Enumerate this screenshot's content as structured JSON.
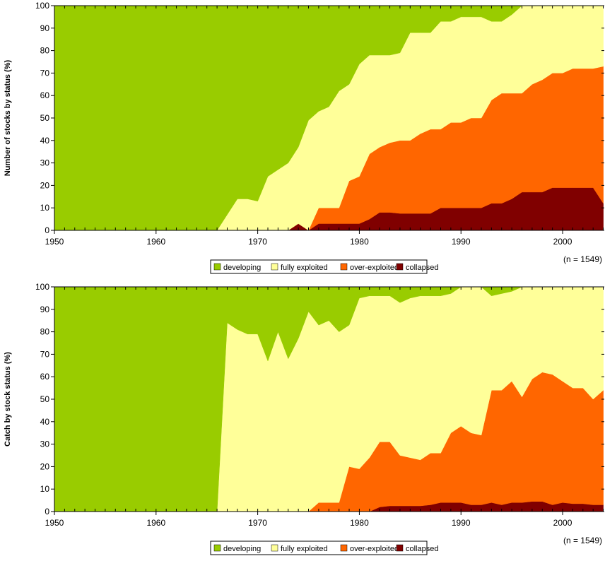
{
  "colors": {
    "developing": "#99cc00",
    "fully exploited": "#ffff99",
    "over-exploited": "#ff6600",
    "collapsed": "#800000"
  },
  "chart_data": [
    {
      "type": "area",
      "stacked": true,
      "title": "",
      "xlabel": "",
      "ylabel": "Number of stocks by status (%)",
      "xlim": [
        1950,
        2004
      ],
      "ylim": [
        0,
        100
      ],
      "xticks": [
        1950,
        1960,
        1970,
        1980,
        1990,
        2000
      ],
      "yticks": [
        0,
        10,
        20,
        30,
        40,
        50,
        60,
        70,
        80,
        90,
        100
      ],
      "annotation": "(n = 1549)",
      "legend": [
        "developing",
        "fully exploited",
        "over-exploited",
        "collapsed"
      ],
      "legend_position": "bottom",
      "x_start": 1950,
      "series": [
        {
          "name": "collapsed",
          "values": [
            0,
            0,
            0,
            0,
            0,
            0,
            0,
            0,
            0,
            0,
            0,
            0,
            0,
            0,
            0,
            0,
            0,
            0,
            0,
            0,
            0,
            0,
            0,
            0,
            3,
            0,
            3,
            3,
            3,
            3,
            3,
            5,
            8,
            8,
            7.5,
            7.5,
            7.5,
            7.5,
            10,
            10,
            10,
            10,
            10,
            12,
            12,
            14,
            17,
            17,
            17,
            19,
            19,
            19,
            19,
            19,
            12
          ]
        },
        {
          "name": "over-exploited",
          "values": [
            0,
            0,
            0,
            0,
            0,
            0,
            0,
            0,
            0,
            0,
            0,
            0,
            0,
            0,
            0,
            0,
            0,
            0,
            0,
            0,
            0,
            0,
            0,
            0,
            0,
            0,
            7,
            7,
            7,
            19,
            21,
            29,
            29,
            31,
            32.5,
            32.5,
            35.5,
            37.5,
            35,
            38,
            38,
            40,
            40,
            46,
            49,
            47,
            44,
            48,
            50,
            51,
            51,
            53,
            53,
            53,
            61
          ]
        },
        {
          "name": "fully exploited",
          "values": [
            0,
            0,
            0,
            0,
            0,
            0,
            0,
            0,
            0,
            0,
            0,
            0,
            0,
            0,
            0,
            0,
            0,
            7,
            14,
            14,
            13,
            24,
            27,
            30,
            34,
            49,
            43,
            45,
            52,
            43,
            50,
            44,
            41,
            39,
            39,
            48,
            45,
            43,
            48,
            45,
            47,
            45,
            45,
            35,
            32,
            35,
            39,
            35,
            33,
            30,
            30,
            28,
            28,
            28,
            27
          ]
        },
        {
          "name": "developing",
          "values": [
            100,
            100,
            100,
            100,
            100,
            100,
            100,
            100,
            100,
            100,
            100,
            100,
            100,
            100,
            100,
            100,
            100,
            93,
            86,
            86,
            87,
            76,
            73,
            70,
            63,
            51,
            47,
            45,
            38,
            35,
            26,
            22,
            22,
            22,
            21,
            12,
            12,
            12,
            7,
            7,
            5,
            5,
            5,
            7,
            7,
            4,
            0,
            0,
            0,
            0,
            0,
            0,
            0,
            0,
            0
          ]
        }
      ]
    },
    {
      "type": "area",
      "stacked": true,
      "title": "",
      "xlabel": "",
      "ylabel": "Catch by stock status (%)",
      "xlim": [
        1950,
        2004
      ],
      "ylim": [
        0,
        100
      ],
      "xticks": [
        1950,
        1960,
        1970,
        1980,
        1990,
        2000
      ],
      "yticks": [
        0,
        10,
        20,
        30,
        40,
        50,
        60,
        70,
        80,
        90,
        100
      ],
      "annotation": "(n = 1549)",
      "legend": [
        "developing",
        "fully exploited",
        "over-exploited",
        "collapsed"
      ],
      "legend_position": "bottom",
      "x_start": 1950,
      "series": [
        {
          "name": "collapsed",
          "values": [
            0,
            0,
            0,
            0,
            0,
            0,
            0,
            0,
            0,
            0,
            0,
            0,
            0,
            0,
            0,
            0,
            0,
            0,
            0,
            0,
            0,
            0,
            0,
            0,
            0,
            0,
            0,
            0,
            0,
            0,
            0,
            0,
            2,
            2.5,
            2.5,
            2.5,
            2.5,
            3,
            4,
            4,
            4,
            3,
            3,
            4,
            3,
            4,
            4,
            4.5,
            4.5,
            3,
            4,
            3.5,
            3.5,
            3,
            3
          ]
        },
        {
          "name": "over-exploited",
          "values": [
            0,
            0,
            0,
            0,
            0,
            0,
            0,
            0,
            0,
            0,
            0,
            0,
            0,
            0,
            0,
            0,
            0,
            0,
            0,
            0,
            0,
            0,
            0,
            0,
            0,
            0,
            4,
            4,
            4,
            20,
            19,
            24,
            29,
            28.5,
            22.5,
            21.5,
            20.5,
            23,
            22,
            31,
            34,
            32,
            31,
            50,
            51,
            54,
            47,
            54.5,
            57.5,
            58,
            54,
            51.5,
            51.5,
            47,
            51
          ]
        },
        {
          "name": "fully exploited",
          "values": [
            0,
            0,
            0,
            0,
            0,
            0,
            0,
            0,
            0,
            0,
            0,
            0,
            0,
            0,
            0,
            0,
            0,
            84,
            81,
            79,
            79,
            67,
            80,
            68,
            77,
            89,
            79,
            81,
            76,
            63,
            76,
            72,
            65,
            65,
            68,
            71,
            73,
            70,
            70,
            62,
            62,
            65,
            66,
            42,
            43,
            40,
            49,
            41,
            38,
            39,
            42,
            45,
            45,
            50,
            46
          ]
        },
        {
          "name": "developing",
          "values": [
            100,
            100,
            100,
            100,
            100,
            100,
            100,
            100,
            100,
            100,
            100,
            100,
            100,
            100,
            100,
            100,
            100,
            16,
            19,
            21,
            21,
            33,
            20,
            32,
            23,
            11,
            17,
            15,
            20,
            17,
            5,
            4,
            4,
            4,
            7,
            5,
            4,
            4,
            4,
            3,
            0,
            0,
            0,
            4,
            3,
            2,
            0,
            0,
            0,
            0,
            0,
            0,
            0,
            0,
            0
          ]
        }
      ]
    }
  ]
}
